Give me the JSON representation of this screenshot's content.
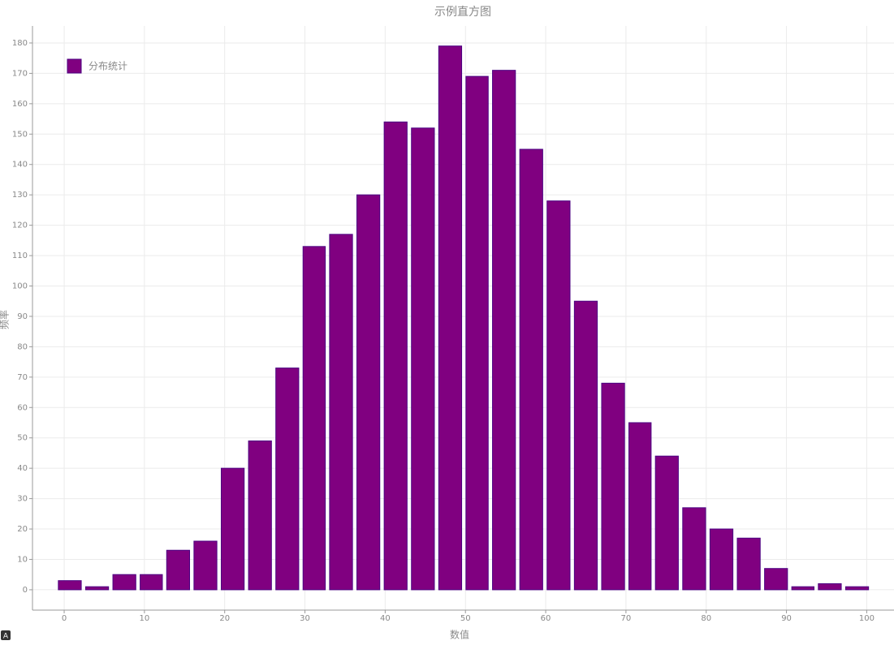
{
  "chart_data": {
    "type": "histogram",
    "title": "示例直方图",
    "x_label": "数值",
    "y_label": "频率",
    "bins": [
      -1.0,
      2.4,
      5.8,
      9.2,
      12.5,
      15.9,
      19.3,
      22.7,
      26.1,
      29.5,
      32.8,
      36.2,
      39.6,
      43.0,
      46.4,
      49.8,
      53.1,
      56.5,
      59.9,
      63.3,
      66.7,
      70.1,
      73.4,
      76.8,
      80.2,
      83.6,
      87.0,
      90.4,
      93.7,
      97.1,
      100.5
    ],
    "series": [
      {
        "name": "分布统计",
        "color": "#800080",
        "values": [
          3,
          1,
          5,
          5,
          13,
          16,
          40,
          49,
          73,
          113,
          117,
          130,
          154,
          152,
          179,
          169,
          171,
          145,
          128,
          95,
          68,
          55,
          44,
          27,
          20,
          17,
          7,
          1,
          2,
          1
        ]
      }
    ],
    "xlim": [
      -3.95,
      103.4
    ],
    "xticks": [
      0,
      10,
      20,
      30,
      40,
      50,
      60,
      70,
      80,
      90,
      100
    ],
    "ylim": [
      -6.7,
      185.6
    ],
    "yticks": [
      0,
      10,
      20,
      30,
      40,
      50,
      60,
      70,
      80,
      90,
      100,
      110,
      120,
      130,
      140,
      150,
      160,
      170,
      180
    ],
    "grid": true,
    "legend": "upper left"
  }
}
